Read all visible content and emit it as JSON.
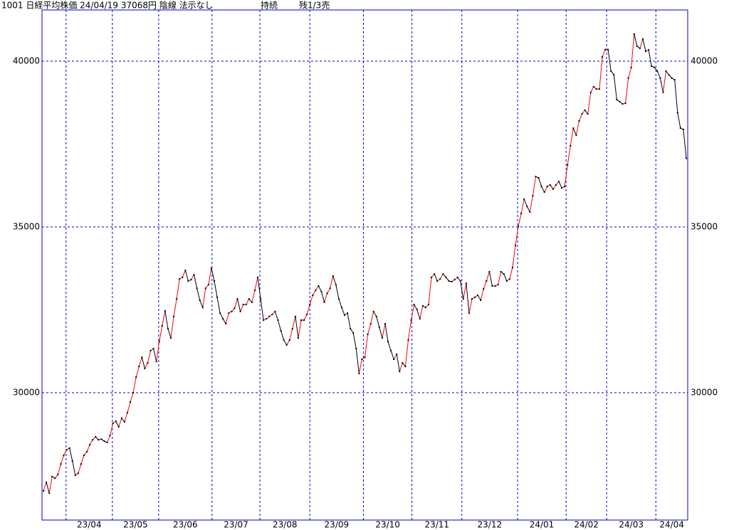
{
  "chart_data": {
    "type": "line",
    "title": [
      "1001 日経平均株価 24/04/19 37068円 陰線 法示なし",
      "持続",
      "残1/3売"
    ],
    "values": [
      27040,
      27300,
      26970,
      27470,
      27420,
      27530,
      27850,
      28110,
      28280,
      28330,
      27940,
      27510,
      27570,
      27850,
      28110,
      28220,
      28430,
      28580,
      28670,
      28580,
      28600,
      28540,
      28500,
      28710,
      29080,
      29140,
      28970,
      29230,
      29120,
      29400,
      29720,
      30000,
      30470,
      30790,
      31070,
      30730,
      30900,
      31270,
      31330,
      30940,
      31540,
      32020,
      32470,
      31930,
      31650,
      32300,
      32830,
      33430,
      33480,
      33690,
      33370,
      33410,
      33560,
      33150,
      32790,
      32570,
      33150,
      33260,
      33760,
      33370,
      32880,
      32400,
      32230,
      32080,
      32400,
      32450,
      32550,
      32830,
      32450,
      32660,
      32660,
      32830,
      32730,
      33090,
      33480,
      32830,
      32190,
      32230,
      32300,
      32360,
      32450,
      32190,
      31870,
      31590,
      31440,
      31590,
      31930,
      32300,
      31650,
      32190,
      32190,
      32360,
      32660,
      32940,
      33090,
      33220,
      33050,
      32730,
      33000,
      33150,
      33520,
      33260,
      32830,
      32570,
      32340,
      32400,
      31930,
      31800,
      31330,
      30580,
      31010,
      31070,
      31760,
      32080,
      32450,
      32300,
      31970,
      31650,
      32080,
      31540,
      31270,
      31010,
      31160,
      30640,
      30900,
      30790,
      31590,
      32190,
      32660,
      32510,
      32230,
      32620,
      32570,
      32660,
      33480,
      33580,
      33370,
      33430,
      33580,
      33480,
      33370,
      33350,
      33410,
      33480,
      33370,
      32830,
      33300,
      32400,
      32830,
      32880,
      32940,
      32790,
      33130,
      33370,
      33650,
      33220,
      33220,
      33260,
      33650,
      33580,
      33370,
      33430,
      33780,
      34440,
      35020,
      35410,
      35840,
      35620,
      35450,
      35940,
      36520,
      36480,
      36220,
      36050,
      36220,
      36270,
      36140,
      36270,
      36370,
      36180,
      36220,
      36870,
      37450,
      37980,
      37770,
      38200,
      38410,
      38520,
      38410,
      39060,
      39230,
      39160,
      39160,
      40130,
      40350,
      40350,
      39700,
      39590,
      38840,
      38780,
      38710,
      38730,
      39490,
      39810,
      40820,
      40450,
      40390,
      40670,
      40300,
      40340,
      39850,
      39810,
      39700,
      39490,
      39060,
      39700,
      39590,
      39490,
      39440,
      38450,
      37980,
      37940,
      37068
    ],
    "up_color": "#ff0000",
    "down_color": "#000000",
    "grid_color": "#0000cc",
    "ylim": [
      26160,
      41545
    ],
    "yticks": [
      30000,
      35000,
      40000
    ],
    "xlim": [
      -0.5,
      222.5
    ],
    "xgrid": [
      7.8,
      23.8,
      39.8,
      58.2,
      74.75,
      92,
      110.5,
      127.25,
      144.5,
      163.75,
      180.5,
      194.5,
      211.5
    ],
    "xticks": [
      {
        "value": 15.8,
        "label": "23/04"
      },
      {
        "value": 31.8,
        "label": "23/05"
      },
      {
        "value": 49,
        "label": "23/06"
      },
      {
        "value": 66.5,
        "label": "23/07"
      },
      {
        "value": 83.4,
        "label": "23/08"
      },
      {
        "value": 101.25,
        "label": "23/09"
      },
      {
        "value": 118.9,
        "label": "23/10"
      },
      {
        "value": 135.9,
        "label": "23/11"
      },
      {
        "value": 154.1,
        "label": "23/12"
      },
      {
        "value": 172.1,
        "label": "24/01"
      },
      {
        "value": 187.5,
        "label": "24/02"
      },
      {
        "value": 203,
        "label": "24/03"
      },
      {
        "value": 217,
        "label": "24/04"
      }
    ],
    "grid": true
  }
}
